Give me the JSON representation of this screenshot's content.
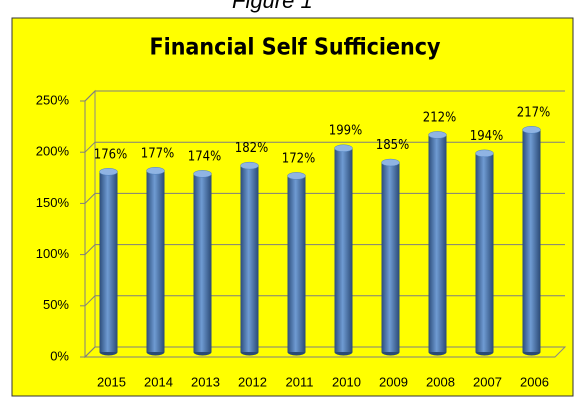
{
  "figure_caption": "Figure 1",
  "chart_data": {
    "type": "bar",
    "title": "Financial Self Sufficiency",
    "categories": [
      "2015",
      "2014",
      "2013",
      "2012",
      "2011",
      "2010",
      "2009",
      "2008",
      "2007",
      "2006"
    ],
    "values": [
      176,
      177,
      174,
      182,
      172,
      199,
      185,
      212,
      194,
      217
    ],
    "value_labels": [
      "176%",
      "177%",
      "174%",
      "182%",
      "172%",
      "199%",
      "185%",
      "212%",
      "194%",
      "217%"
    ],
    "color": "#4f81bd",
    "ylim": [
      0,
      250
    ],
    "yticks": [
      {
        "value": 0,
        "label": "0%"
      },
      {
        "value": 50,
        "label": "50%"
      },
      {
        "value": 100,
        "label": "100%"
      },
      {
        "value": 150,
        "label": "150%"
      },
      {
        "value": 200,
        "label": "200%"
      },
      {
        "value": 250,
        "label": "250%"
      }
    ],
    "grid": true
  }
}
